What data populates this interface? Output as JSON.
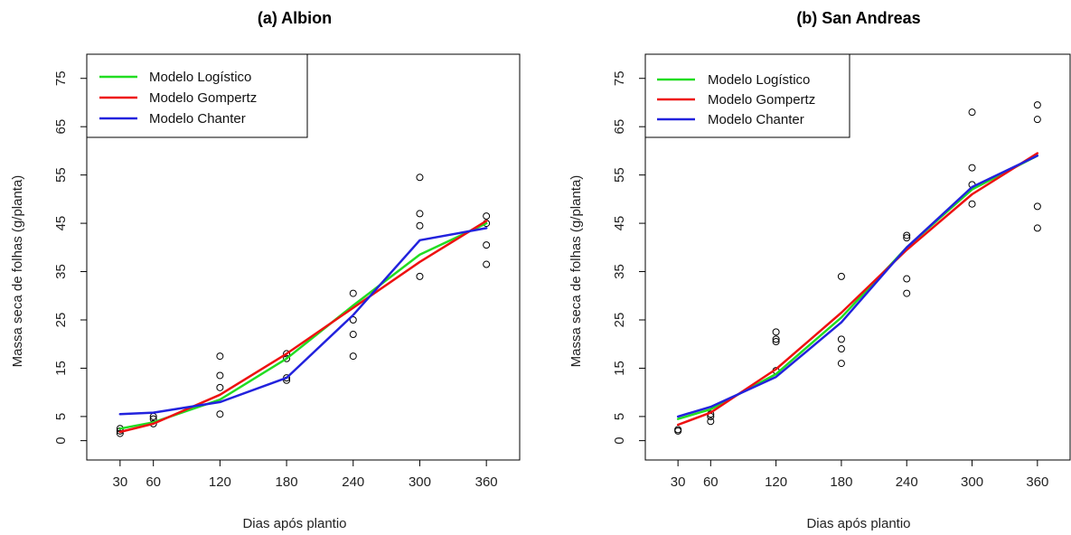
{
  "chart_data": [
    {
      "type": "scatter",
      "title": "(a) Albion",
      "xlabel": "Dias após plantio",
      "ylabel": "Massa seca de folhas (g/planta)",
      "xlim": [
        0,
        390
      ],
      "ylim": [
        -4,
        80
      ],
      "x_ticks": [
        30,
        60,
        120,
        180,
        240,
        300,
        360
      ],
      "y_ticks": [
        0,
        5,
        15,
        25,
        35,
        45,
        55,
        65,
        75
      ],
      "grid": false,
      "legend_position": "top-left",
      "points": {
        "x": [
          30,
          30,
          30,
          60,
          60,
          60,
          120,
          120,
          120,
          120,
          180,
          180,
          180,
          180,
          240,
          240,
          240,
          240,
          300,
          300,
          300,
          300,
          360,
          360,
          360,
          360
        ],
        "y": [
          1.5,
          2.0,
          2.5,
          3.5,
          4.5,
          5.0,
          5.5,
          11.0,
          13.5,
          17.5,
          12.5,
          13.0,
          17.0,
          18.0,
          17.5,
          22.0,
          25.0,
          30.5,
          34.0,
          44.5,
          47.0,
          54.5,
          36.5,
          40.5,
          45.0,
          46.5
        ]
      },
      "series": [
        {
          "name": "Modelo Logístico",
          "color": "#22dd22",
          "x": [
            30,
            60,
            120,
            180,
            240,
            300,
            360
          ],
          "y": [
            2.5,
            3.8,
            8.5,
            17.0,
            28.0,
            38.5,
            45.0
          ]
        },
        {
          "name": "Modelo Gompertz",
          "color": "#ee1111",
          "x": [
            30,
            60,
            120,
            180,
            240,
            300,
            360
          ],
          "y": [
            1.8,
            3.5,
            9.5,
            18.0,
            27.5,
            37.0,
            45.5
          ]
        },
        {
          "name": "Modelo Chanter",
          "color": "#2222dd",
          "x": [
            30,
            60,
            120,
            180,
            240,
            300,
            360
          ],
          "y": [
            5.5,
            5.8,
            8.0,
            13.0,
            26.0,
            41.5,
            44.0
          ]
        }
      ]
    },
    {
      "type": "scatter",
      "title": "(b) San Andreas",
      "xlabel": "Dias após plantio",
      "ylabel": "Massa seca de folhas (g/planta)",
      "xlim": [
        0,
        390
      ],
      "ylim": [
        -4,
        80
      ],
      "x_ticks": [
        30,
        60,
        120,
        180,
        240,
        300,
        360
      ],
      "y_ticks": [
        0,
        5,
        15,
        25,
        35,
        45,
        55,
        65,
        75
      ],
      "grid": false,
      "legend_position": "top-left",
      "points": {
        "x": [
          30,
          30,
          60,
          60,
          60,
          120,
          120,
          120,
          120,
          180,
          180,
          180,
          180,
          240,
          240,
          240,
          240,
          300,
          300,
          300,
          300,
          360,
          360,
          360,
          360
        ],
        "y": [
          2.0,
          2.3,
          4.0,
          5.0,
          5.5,
          14.5,
          20.5,
          21.0,
          22.5,
          16.0,
          19.0,
          21.0,
          34.0,
          30.5,
          33.5,
          42.0,
          42.5,
          49.0,
          53.0,
          56.5,
          68.0,
          44.0,
          48.5,
          66.5,
          69.5
        ]
      },
      "series": [
        {
          "name": "Modelo Logístico",
          "color": "#22dd22",
          "x": [
            30,
            60,
            120,
            180,
            240,
            300,
            360
          ],
          "y": [
            4.5,
            6.5,
            13.8,
            25.5,
            40.0,
            52.0,
            59.0
          ]
        },
        {
          "name": "Modelo Gompertz",
          "color": "#ee1111",
          "x": [
            30,
            60,
            120,
            180,
            240,
            300,
            360
          ],
          "y": [
            3.3,
            5.8,
            14.8,
            26.5,
            39.5,
            51.0,
            59.5
          ]
        },
        {
          "name": "Modelo Chanter",
          "color": "#2222dd",
          "x": [
            30,
            60,
            120,
            180,
            240,
            300,
            360
          ],
          "y": [
            5.0,
            7.0,
            13.2,
            24.5,
            40.0,
            52.5,
            59.0
          ]
        }
      ]
    }
  ]
}
